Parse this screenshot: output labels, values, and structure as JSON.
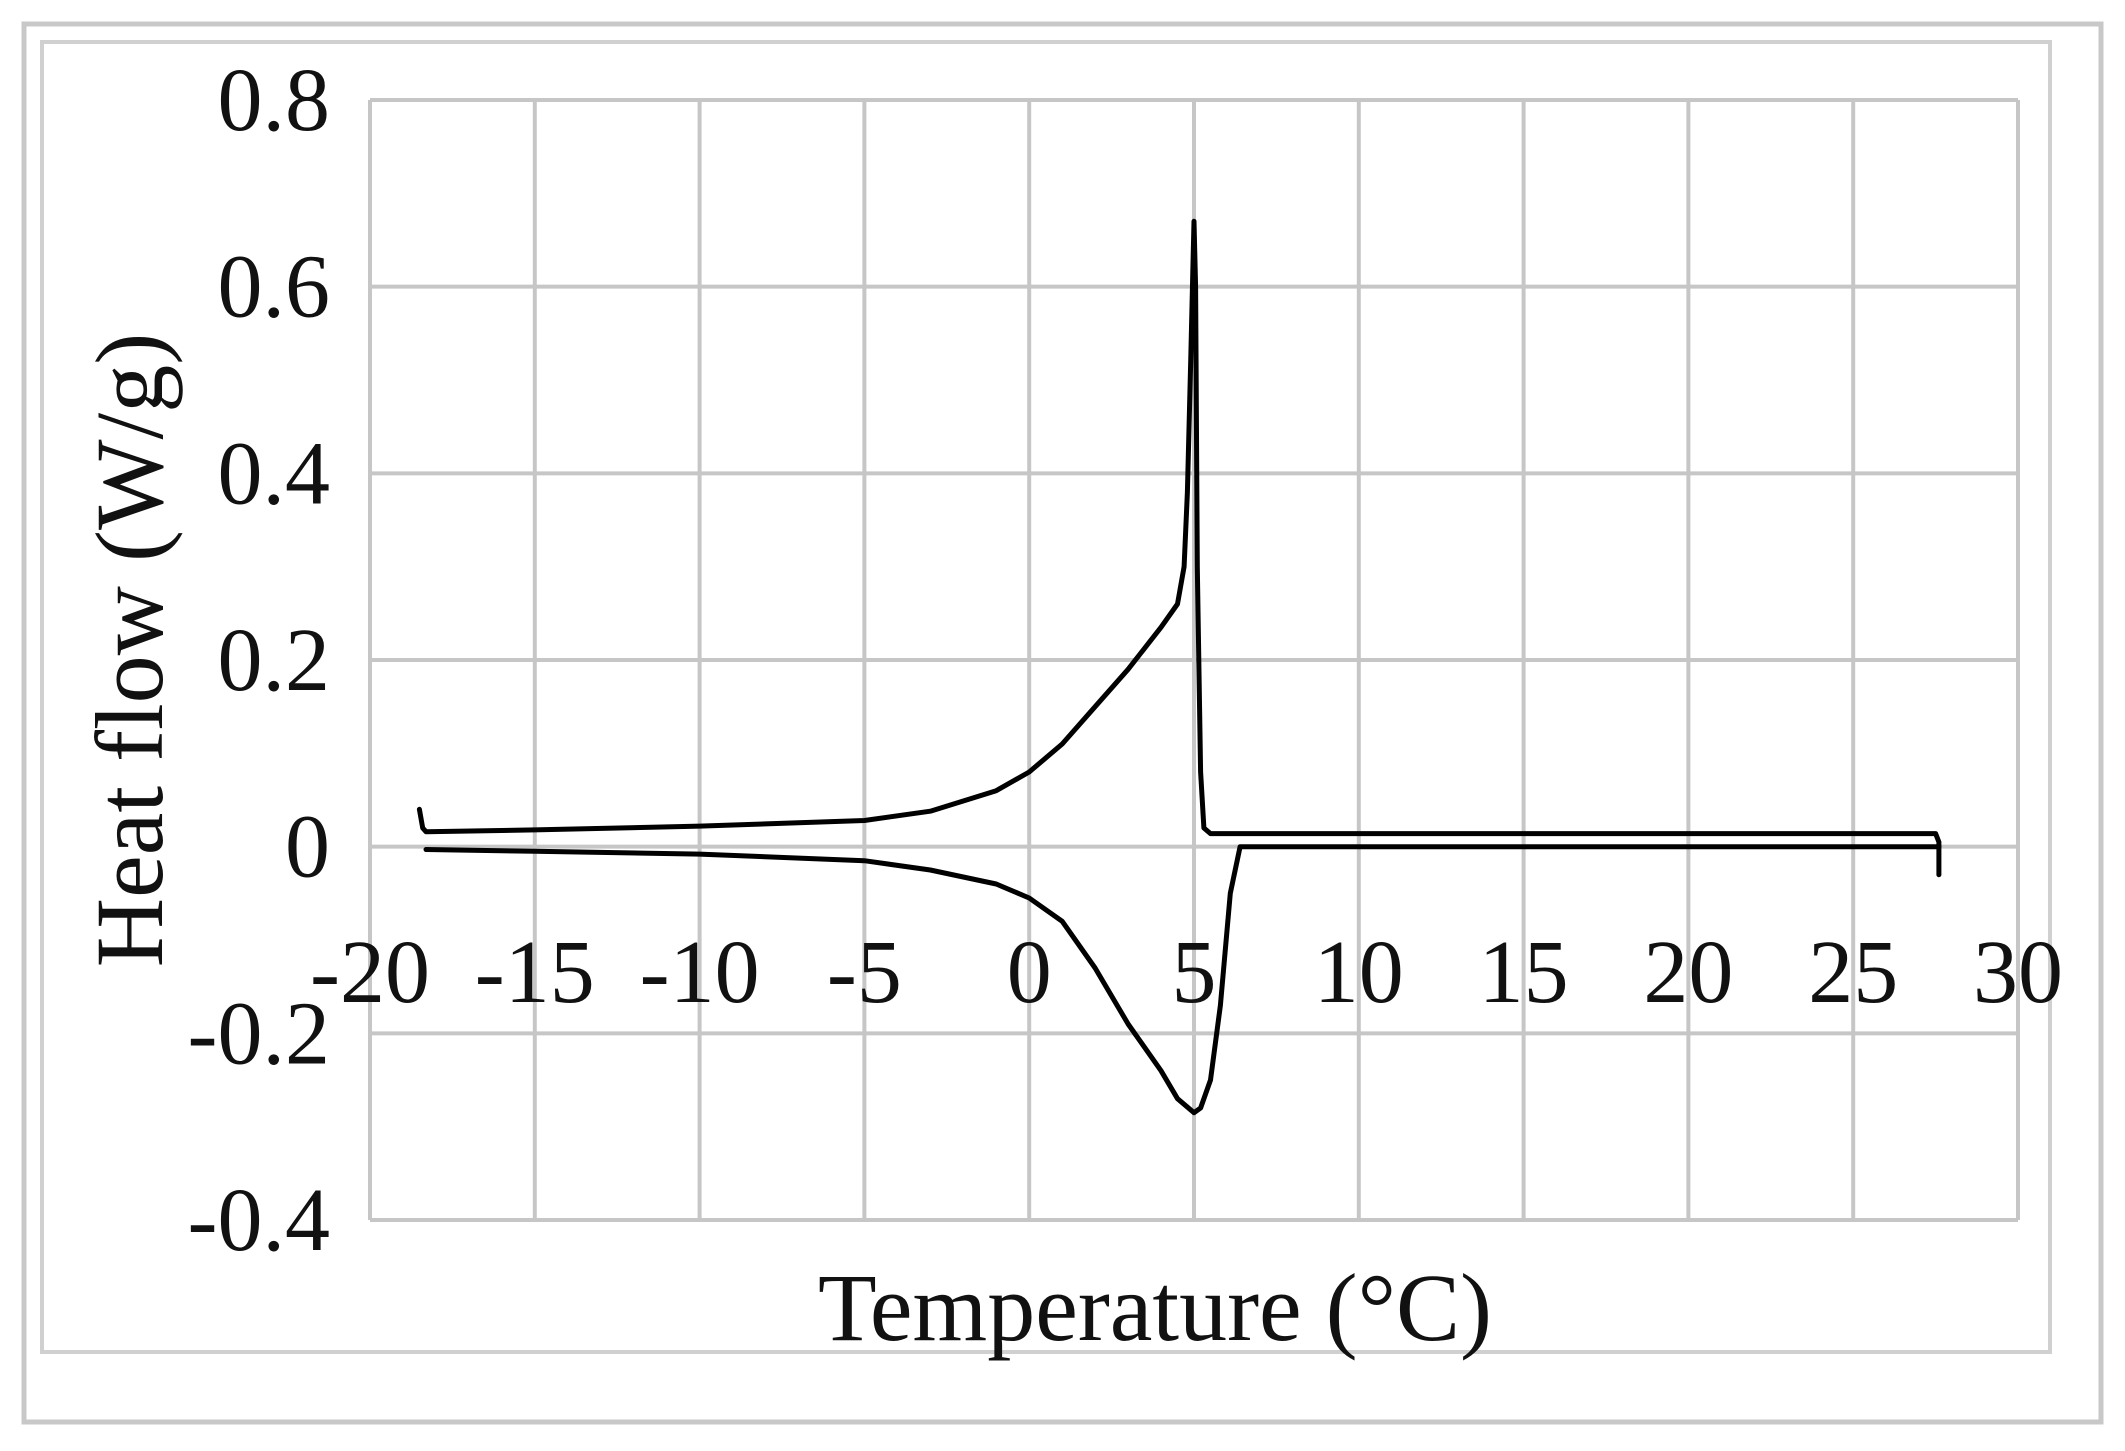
{
  "chart_data": {
    "type": "line",
    "xlabel": "Temperature (°C)",
    "ylabel": "Heat flow (W/g)",
    "xlim": [
      -20,
      30
    ],
    "ylim": [
      -0.4,
      0.8
    ],
    "x_ticks": [
      -20,
      -15,
      -10,
      -5,
      0,
      5,
      10,
      15,
      20,
      25,
      30
    ],
    "y_ticks": [
      0.8,
      0.6,
      0.4,
      0.2,
      0,
      -0.2,
      -0.4
    ],
    "x_tick_labels": [
      "-20",
      "-15",
      "-10",
      "-5",
      "0",
      "5",
      "10",
      "15",
      "20",
      "25",
      "30"
    ],
    "y_tick_labels": [
      "0.8",
      "0.6",
      "0.4",
      "0.2",
      "0",
      "-0.2",
      "-0.4"
    ],
    "grid": true,
    "legend": "none",
    "series": [
      {
        "x": [
          -18.5,
          -18.4,
          -18.3,
          -15,
          -10,
          -5,
          -3,
          -1,
          0,
          1,
          2,
          3,
          4,
          4.5,
          4.7,
          4.8,
          4.9,
          5.0,
          5.05,
          5.1,
          5.2,
          5.3,
          5.5,
          10,
          15,
          20,
          25,
          27.5,
          27.6,
          27.6
        ],
        "y": [
          0.04,
          0.02,
          0.016,
          0.018,
          0.022,
          0.028,
          0.038,
          0.06,
          0.08,
          0.11,
          0.15,
          0.19,
          0.235,
          0.26,
          0.3,
          0.38,
          0.52,
          0.67,
          0.6,
          0.3,
          0.08,
          0.02,
          0.014,
          0.014,
          0.014,
          0.014,
          0.014,
          0.014,
          0.005,
          -0.03
        ]
      },
      {
        "x": [
          -18.3,
          -15,
          -10,
          -5,
          -3,
          -1,
          0,
          1,
          2,
          3,
          4,
          4.5,
          5,
          5.2,
          5.5,
          5.8,
          6.1,
          6.4,
          10,
          15,
          20,
          25,
          27.6
        ],
        "y": [
          -0.003,
          -0.005,
          -0.008,
          -0.015,
          -0.025,
          -0.04,
          -0.055,
          -0.08,
          -0.13,
          -0.19,
          -0.24,
          -0.27,
          -0.285,
          -0.28,
          -0.25,
          -0.17,
          -0.05,
          0.0,
          0.0,
          0.0,
          0.0,
          0.0,
          0.0
        ]
      }
    ]
  }
}
